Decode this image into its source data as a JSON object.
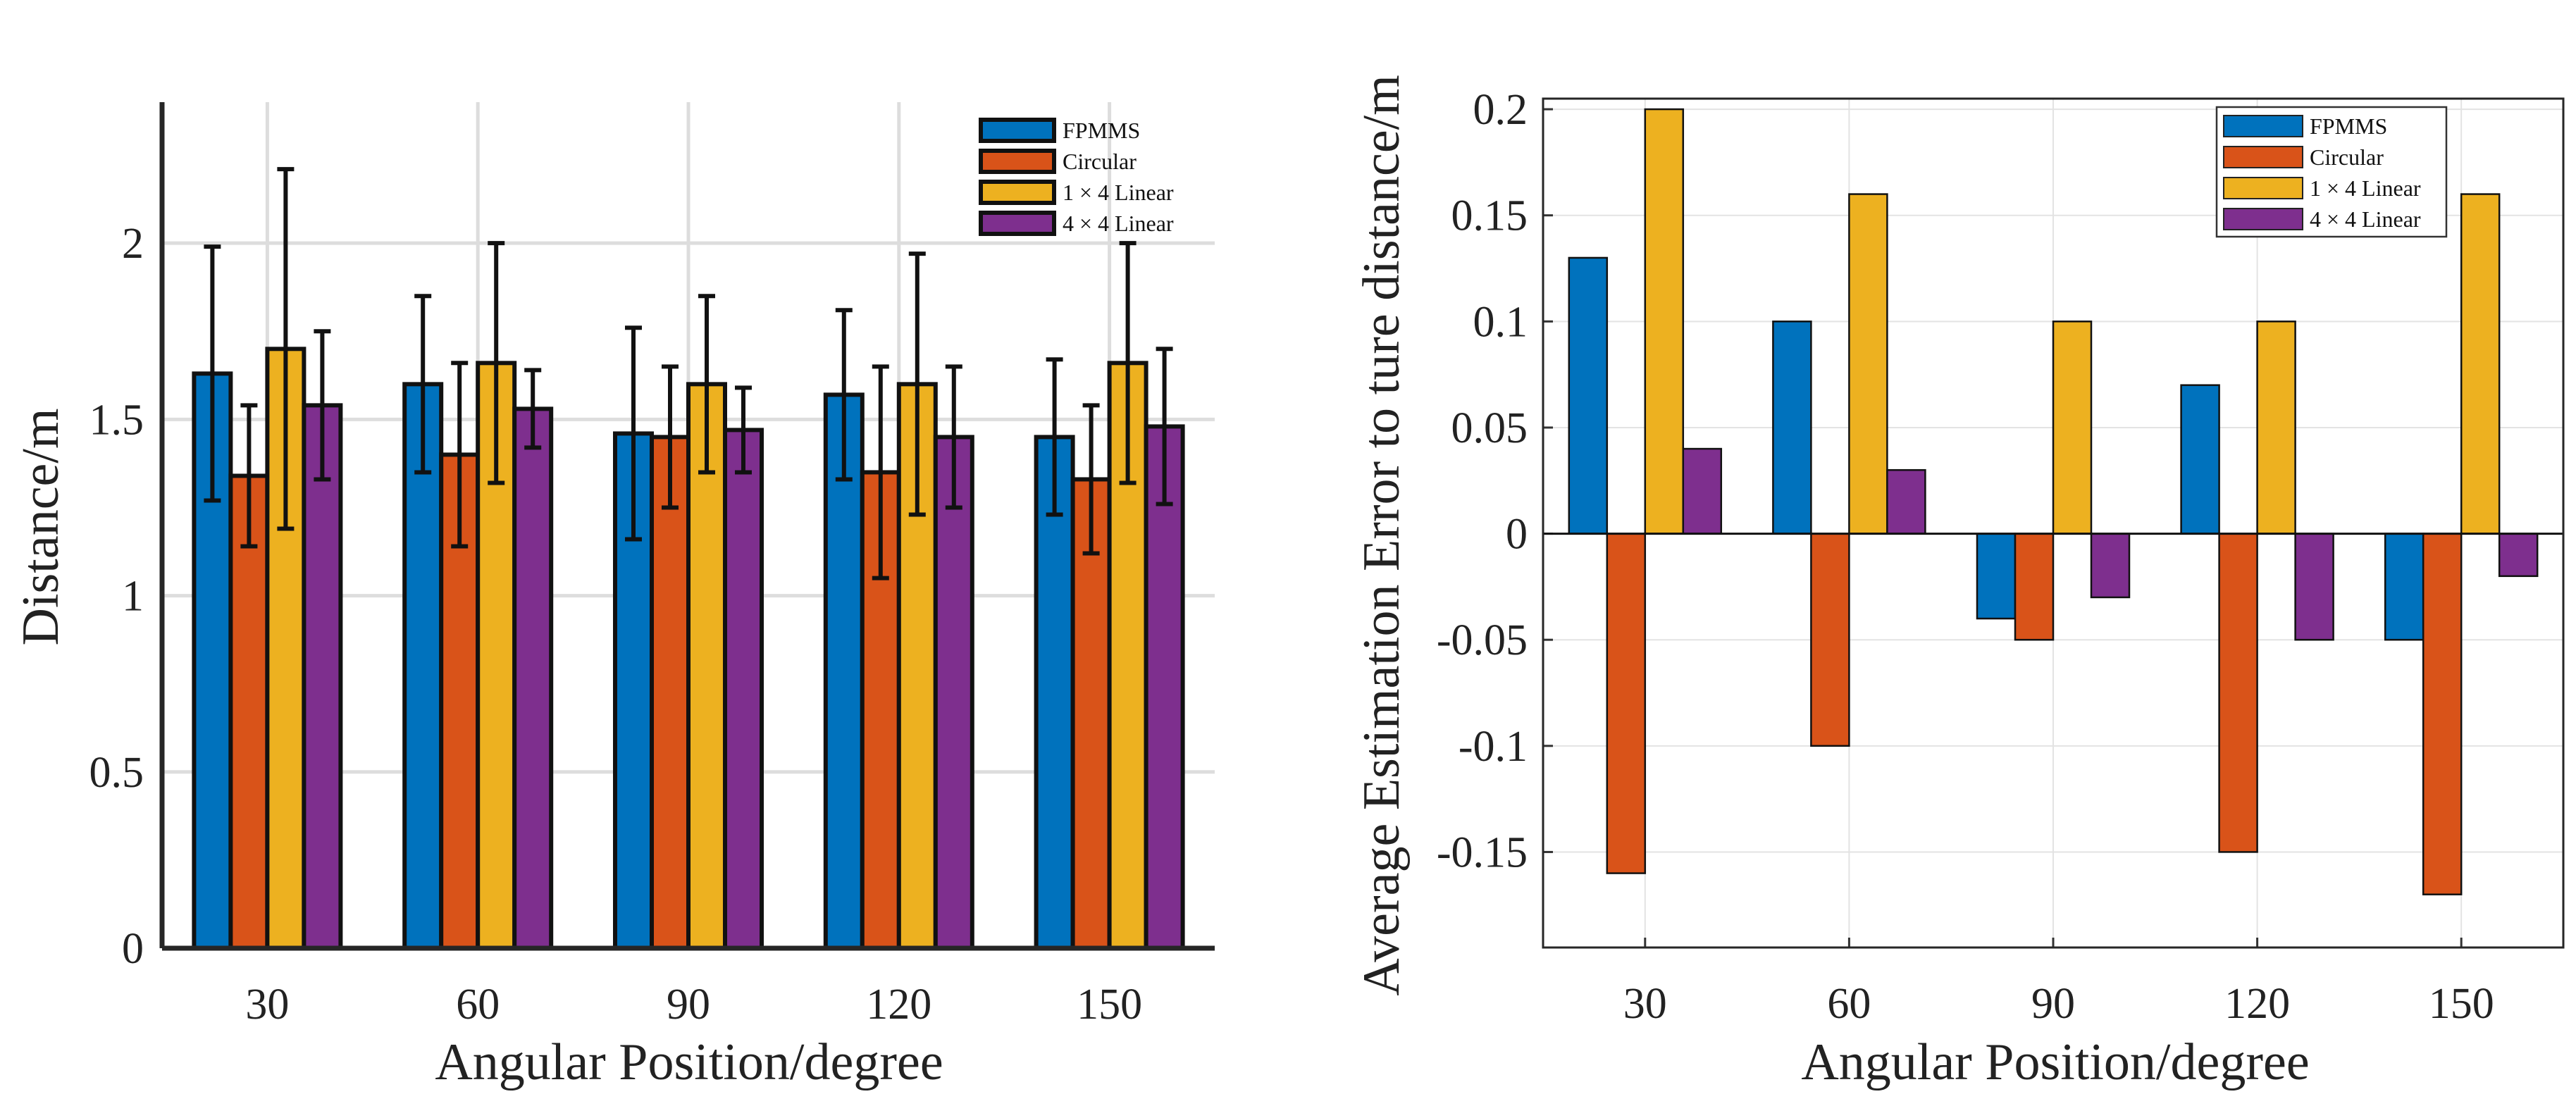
{
  "chart_data": [
    {
      "type": "bar",
      "title": "",
      "xlabel": "Angular Position/degree",
      "ylabel": "Distance/m",
      "categories": [
        "30",
        "60",
        "90",
        "120",
        "150"
      ],
      "ylim": [
        0,
        2.4
      ],
      "yticks": [
        0,
        0.5,
        1,
        1.5,
        2
      ],
      "ytick_labels": [
        "0",
        "0.5",
        "1",
        "1.5",
        "2"
      ],
      "grid": true,
      "legend_position": "top-right",
      "error_bars": true,
      "series": [
        {
          "name": "FPMMS",
          "color": "#0072BD",
          "values": [
            1.63,
            1.6,
            1.46,
            1.57,
            1.45
          ],
          "err_low": [
            1.27,
            1.35,
            1.16,
            1.33,
            1.23
          ],
          "err_high": [
            1.99,
            1.85,
            1.76,
            1.81,
            1.67
          ]
        },
        {
          "name": "Circular",
          "color": "#D95319",
          "values": [
            1.34,
            1.4,
            1.45,
            1.35,
            1.33
          ],
          "err_low": [
            1.14,
            1.14,
            1.25,
            1.05,
            1.12
          ],
          "err_high": [
            1.54,
            1.66,
            1.65,
            1.65,
            1.54
          ]
        },
        {
          "name": "1 × 4 Linear",
          "color": "#EDB120",
          "values": [
            1.7,
            1.66,
            1.6,
            1.6,
            1.66
          ],
          "err_low": [
            1.19,
            1.32,
            1.35,
            1.23,
            1.32
          ],
          "err_high": [
            2.21,
            2.0,
            1.85,
            1.97,
            2.0
          ]
        },
        {
          "name": "4 × 4 Linear",
          "color": "#7E2F8E",
          "values": [
            1.54,
            1.53,
            1.47,
            1.45,
            1.48
          ],
          "err_low": [
            1.33,
            1.42,
            1.35,
            1.25,
            1.26
          ],
          "err_high": [
            1.75,
            1.64,
            1.59,
            1.65,
            1.7
          ]
        }
      ]
    },
    {
      "type": "bar",
      "title": "",
      "xlabel": "Angular Position/degree",
      "ylabel": "Average Estimation Error to ture distance/m",
      "categories": [
        "30",
        "60",
        "90",
        "120",
        "150"
      ],
      "ylim": [
        -0.195,
        0.205
      ],
      "yticks": [
        -0.15,
        -0.1,
        -0.05,
        0,
        0.05,
        0.1,
        0.15,
        0.2
      ],
      "ytick_labels": [
        "-0.15",
        "-0.1",
        "-0.05",
        "0",
        "0.05",
        "0.1",
        "0.15",
        "0.2"
      ],
      "grid": true,
      "legend_position": "top-right",
      "series": [
        {
          "name": "FPMMS",
          "color": "#0072BD",
          "values": [
            0.13,
            0.1,
            -0.04,
            0.07,
            -0.05
          ]
        },
        {
          "name": "Circular",
          "color": "#D95319",
          "values": [
            -0.16,
            -0.1,
            -0.05,
            -0.15,
            -0.17
          ]
        },
        {
          "name": "1 × 4 Linear",
          "color": "#EDB120",
          "values": [
            0.2,
            0.16,
            0.1,
            0.1,
            0.16
          ]
        },
        {
          "name": "4 × 4 Linear",
          "color": "#7E2F8E",
          "values": [
            0.04,
            0.03,
            -0.03,
            -0.05,
            -0.02
          ]
        }
      ]
    }
  ]
}
